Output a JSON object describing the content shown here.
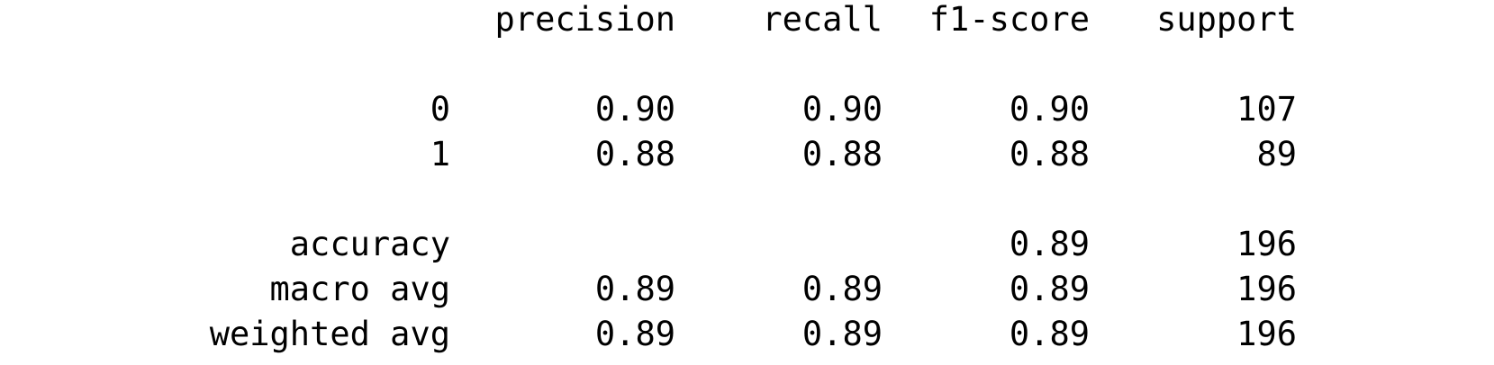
{
  "report": {
    "headers": {
      "precision": "precision",
      "recall": "recall",
      "f1": "f1-score",
      "support": "support"
    },
    "rows": [
      {
        "label": "0",
        "precision": "0.90",
        "recall": "0.90",
        "f1": "0.90",
        "support": "107"
      },
      {
        "label": "1",
        "precision": "0.88",
        "recall": "0.88",
        "f1": "0.88",
        "support": "89"
      },
      {
        "label": "accuracy",
        "precision": "",
        "recall": "",
        "f1": "0.89",
        "support": "196"
      },
      {
        "label": "macro avg",
        "precision": "0.89",
        "recall": "0.89",
        "f1": "0.89",
        "support": "196"
      },
      {
        "label": "weighted avg",
        "precision": "0.89",
        "recall": "0.89",
        "f1": "0.89",
        "support": "196"
      }
    ]
  }
}
